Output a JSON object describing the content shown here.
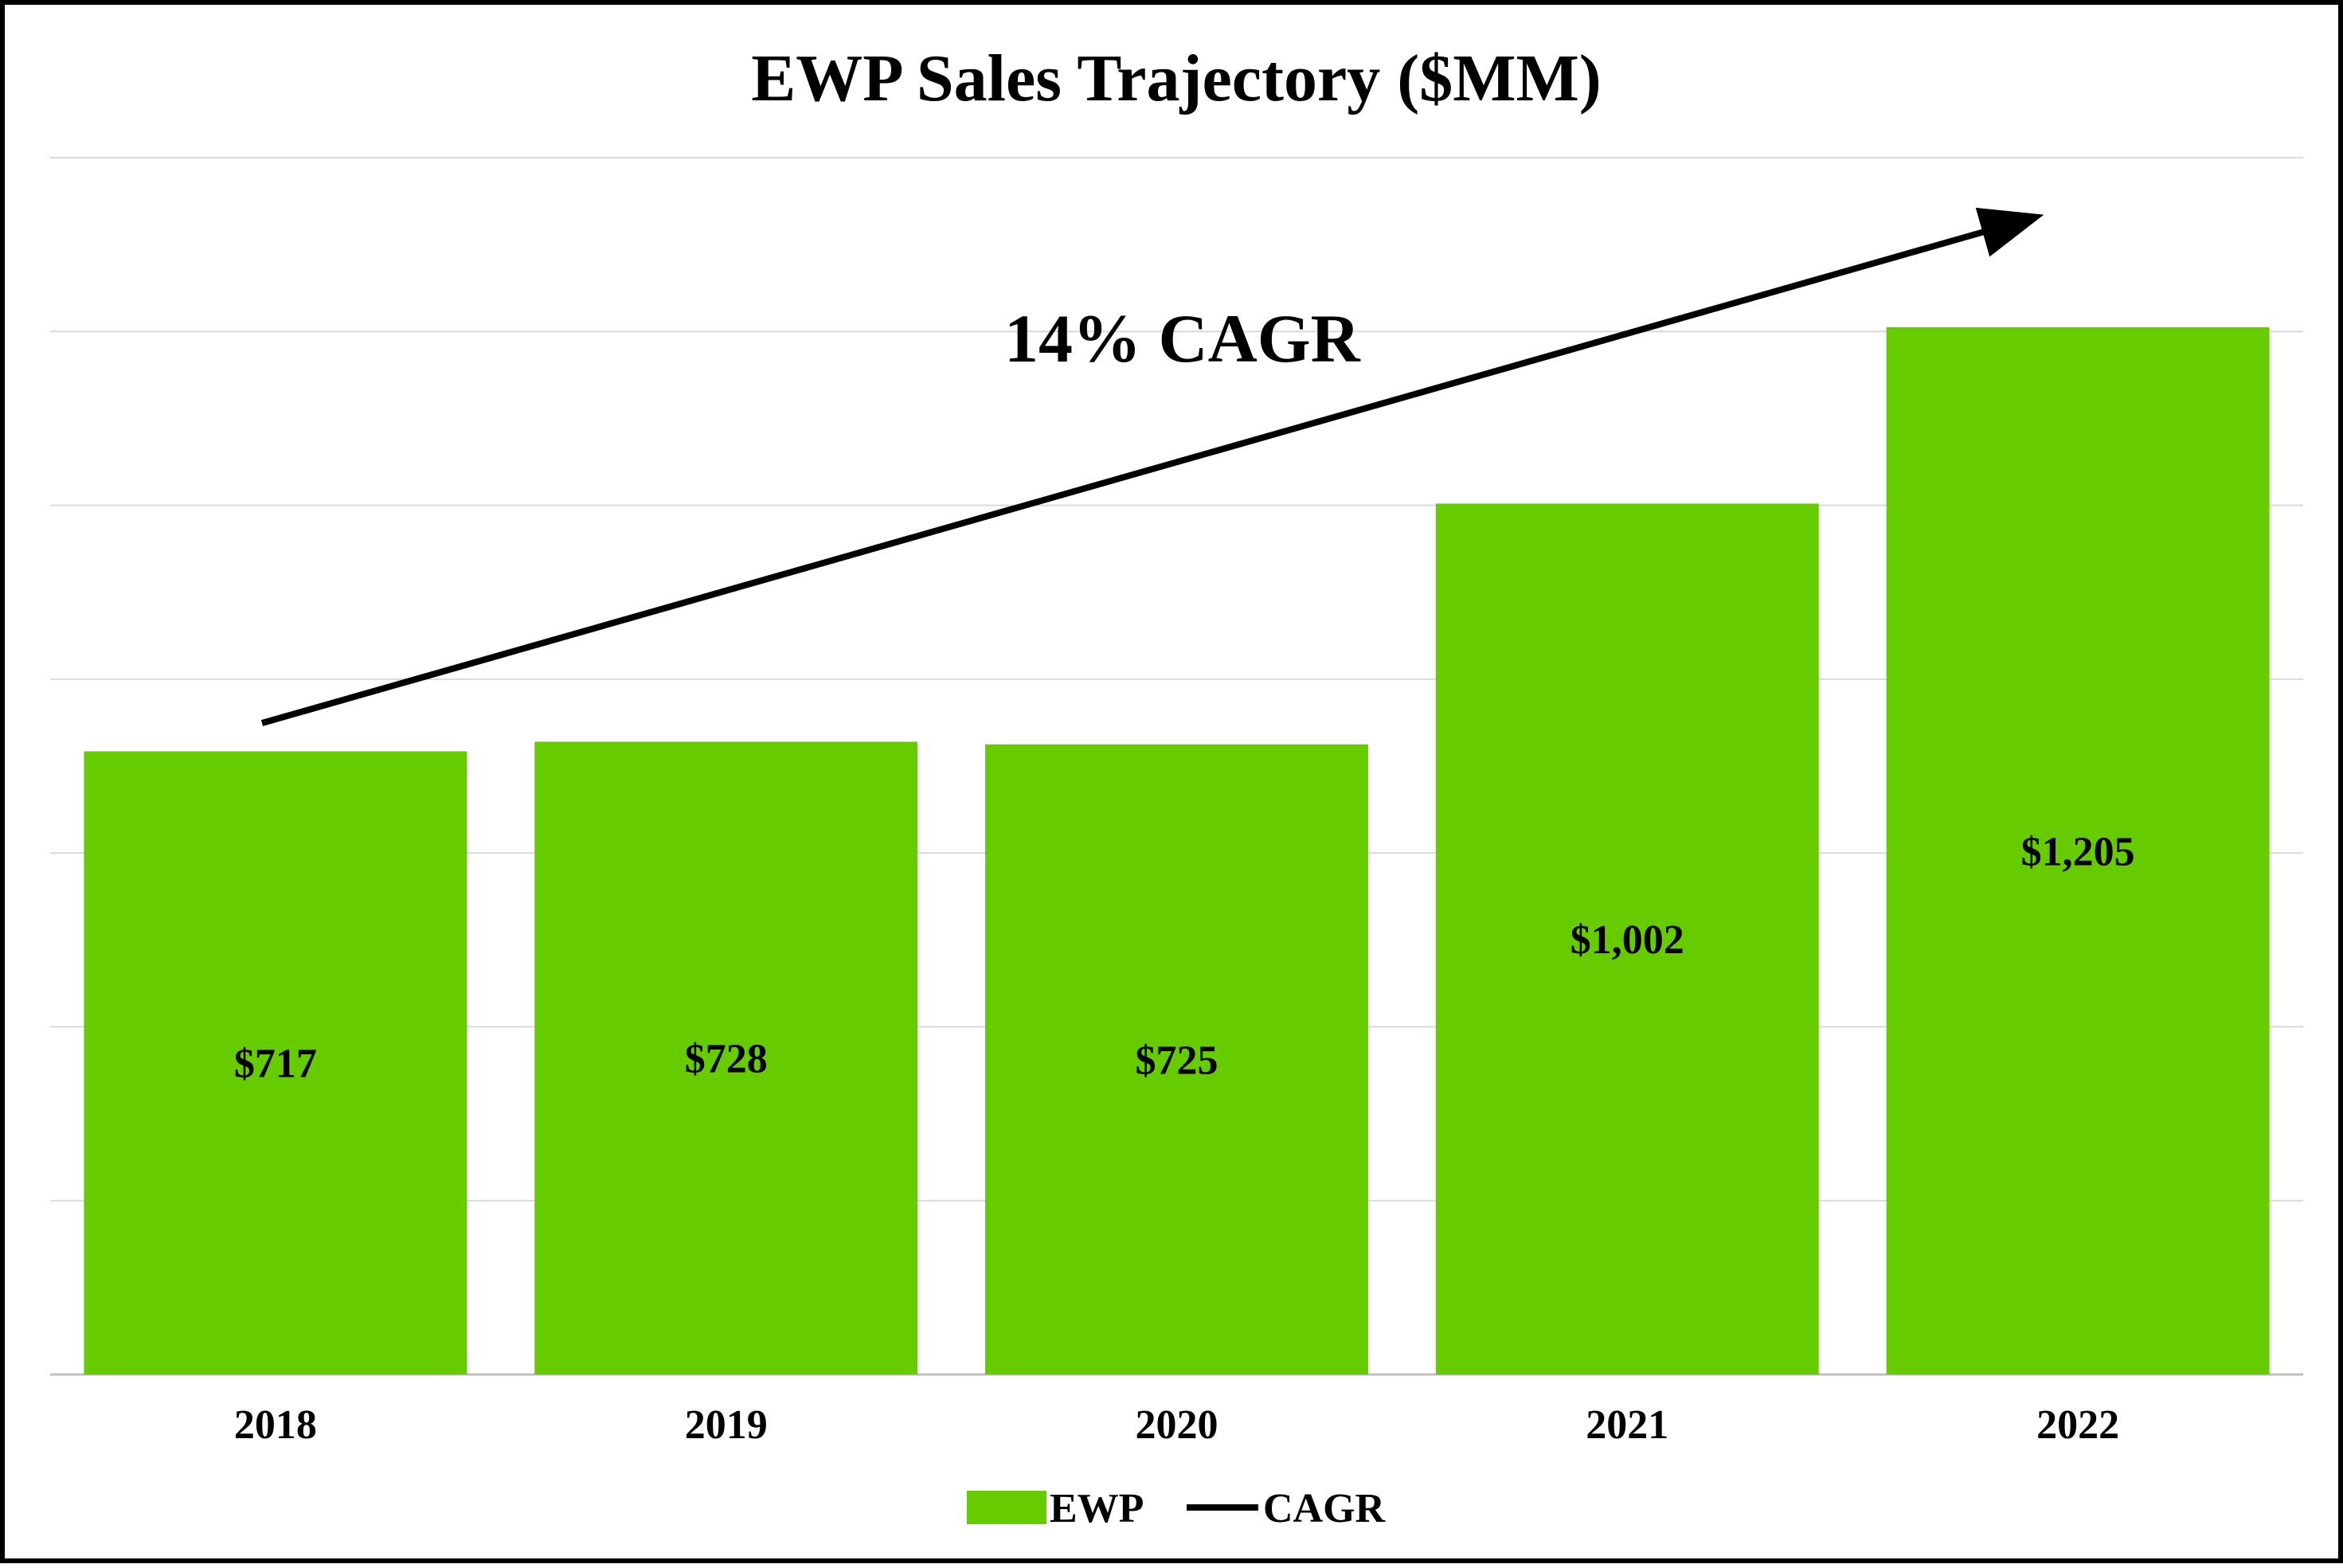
{
  "chart_data": {
    "type": "bar",
    "title": "EWP Sales Trajectory ($MM)",
    "categories": [
      "2018",
      "2019",
      "2020",
      "2021",
      "2022"
    ],
    "series": [
      {
        "name": "EWP",
        "values": [
          717,
          728,
          725,
          1002,
          1205
        ],
        "labels": [
          "$717",
          "$728",
          "$725",
          "$1,002",
          "$1,205"
        ],
        "color": "#66CC00"
      }
    ],
    "annotation": {
      "text": "14% CAGR",
      "legend_name": "CAGR",
      "color": "#000000"
    },
    "ylim": [
      0,
      1400
    ],
    "y_gridline_step": 200,
    "y_axis_labels_shown": false,
    "grid": true,
    "legend_position": "bottom"
  }
}
